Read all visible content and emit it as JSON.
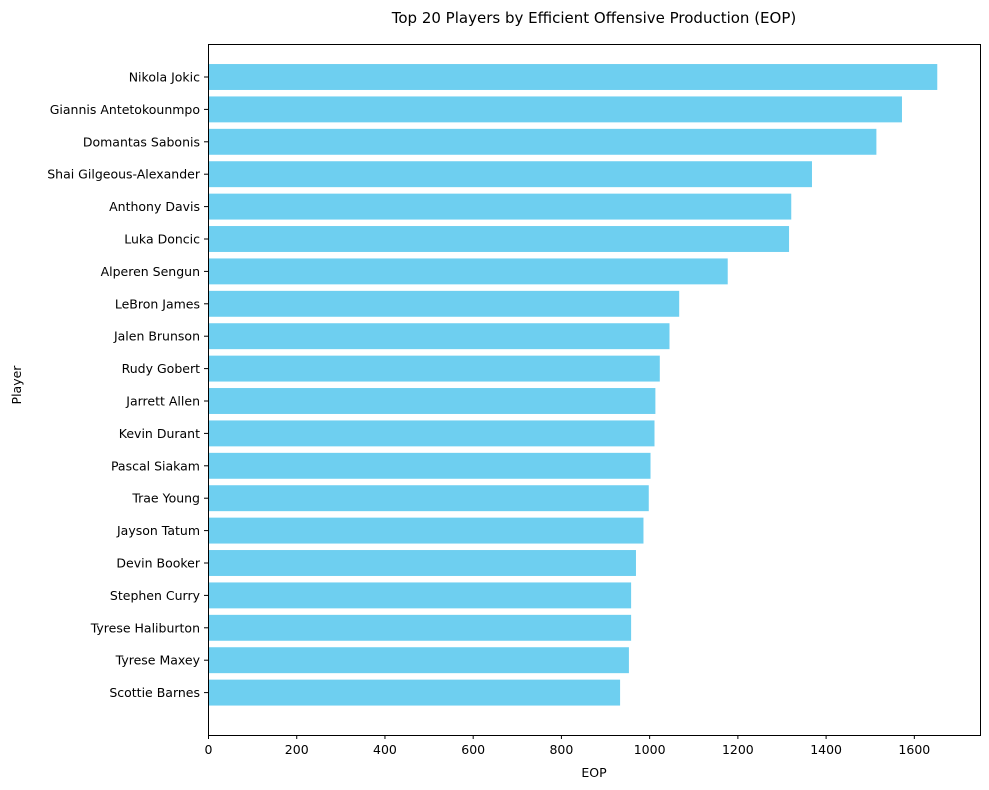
{
  "chart_data": {
    "type": "bar",
    "orientation": "horizontal",
    "title": "Top 20 Players by Efficient Offensive Production (EOP)",
    "xlabel": "EOP",
    "ylabel": "Player",
    "xlim": [
      0,
      1750
    ],
    "xticks": [
      0,
      200,
      400,
      600,
      800,
      1000,
      1200,
      1400,
      1600
    ],
    "bar_color": "#6ecff0",
    "categories": [
      "Nikola Jokic",
      "Giannis Antetokounmpo",
      "Domantas Sabonis",
      "Shai Gilgeous-Alexander",
      "Anthony Davis",
      "Luka Doncic",
      "Alperen Sengun",
      "LeBron James",
      "Jalen Brunson",
      "Rudy Gobert",
      "Jarrett Allen",
      "Kevin Durant",
      "Pascal Siakam",
      "Trae Young",
      "Jayson Tatum",
      "Devin Booker",
      "Stephen Curry",
      "Tyrese Haliburton",
      "Tyrese Maxey",
      "Scottie Barnes"
    ],
    "values": [
      1652,
      1572,
      1514,
      1368,
      1321,
      1316,
      1177,
      1067,
      1045,
      1023,
      1013,
      1011,
      1002,
      998,
      986,
      969,
      958,
      958,
      953,
      933
    ],
    "grid": false
  }
}
